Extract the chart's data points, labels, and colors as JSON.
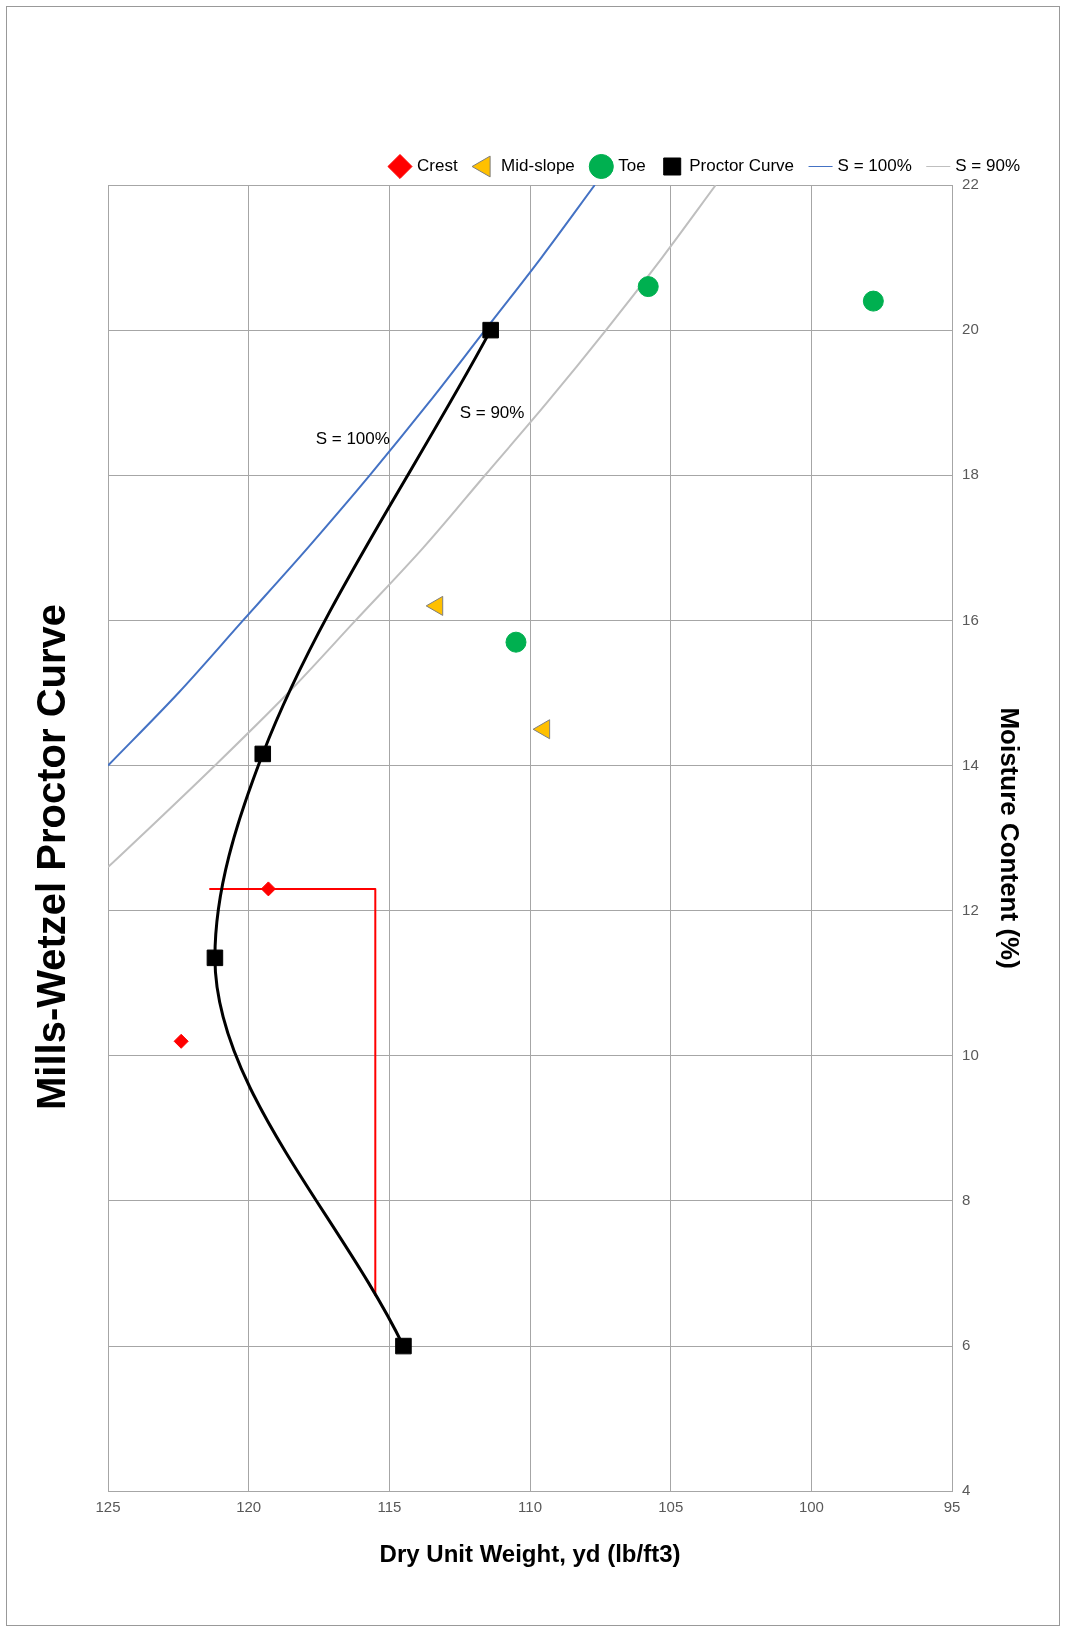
{
  "chart_data": {
    "type": "scatter",
    "title": "Mills-Wetzel Proctor Curve",
    "xlabel": "Dry Unit Weight, yd (lb/ft3)",
    "ylabel": "Moisture Content (%)",
    "xlim": [
      125,
      95
    ],
    "xticks": [
      125,
      120,
      115,
      110,
      105,
      100,
      95
    ],
    "ylim": [
      4,
      22
    ],
    "yticks": [
      4,
      6,
      8,
      10,
      12,
      14,
      16,
      18,
      20,
      22
    ],
    "grid": true,
    "legend": "top right",
    "annotations": [
      "S = 100%",
      "S = 90%"
    ],
    "series": [
      {
        "name": "Crest",
        "type": "scatter",
        "marker": "diamond",
        "color": "#ff0000",
        "x": [
          122.4,
          119.3
        ],
        "values": [
          10.2,
          12.3
        ]
      },
      {
        "name": "Mid-slope",
        "type": "scatter",
        "marker": "triangle",
        "color": "#ffc000",
        "x": [
          113.3,
          109.5
        ],
        "values": [
          16.2,
          14.5
        ]
      },
      {
        "name": "Toe",
        "type": "scatter",
        "marker": "circle",
        "color": "#00b050",
        "x": [
          110.5,
          105.8,
          97.8
        ],
        "values": [
          15.7,
          20.6,
          20.4
        ]
      },
      {
        "name": "Proctor Curve",
        "type": "line",
        "marker": "square",
        "color": "#000000",
        "x": [
          114.5,
          121.2,
          119.5,
          111.4
        ],
        "values": [
          6.0,
          11.35,
          14.16,
          20.0
        ]
      },
      {
        "name": "S = 100%",
        "type": "line",
        "marker": "none",
        "color": "#4472c4",
        "x": [
          125.0,
          122.5,
          120.2,
          117.9,
          115.7,
          113.6,
          111.6,
          109.6,
          107.7
        ],
        "values": [
          14,
          15,
          16,
          17,
          18,
          19,
          20,
          21,
          22
        ]
      },
      {
        "name": "S = 90%",
        "type": "line",
        "marker": "none",
        "color": "#bfbfbf",
        "x": [
          125.0,
          123.9,
          121.2,
          118.6,
          116.2,
          113.8,
          111.6,
          109.4,
          107.3,
          105.3,
          103.4
        ],
        "values": [
          12.6,
          13,
          14,
          15,
          16,
          17,
          18,
          19,
          20,
          21,
          22
        ]
      },
      {
        "type": "line",
        "marker": "none",
        "color": "#ff0000",
        "x": [
          121.4,
          115.5,
          115.5
        ],
        "values": [
          12.3,
          12.3,
          6.7
        ]
      }
    ]
  }
}
